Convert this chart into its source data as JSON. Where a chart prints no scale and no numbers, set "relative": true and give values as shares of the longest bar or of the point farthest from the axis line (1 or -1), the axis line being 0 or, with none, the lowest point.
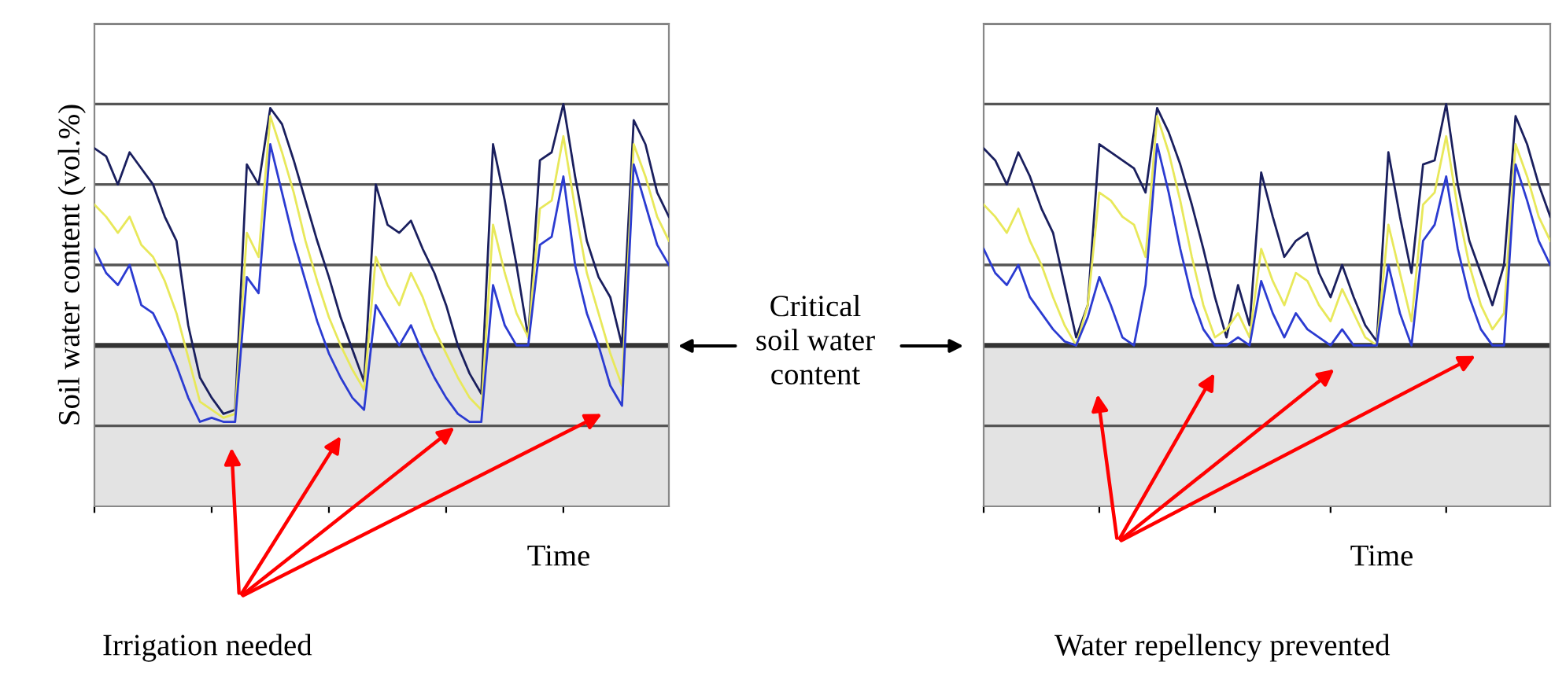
{
  "chart_data": [
    {
      "type": "line",
      "relative": true,
      "ylabel": "Soil water content (vol.%)",
      "xlabel": "Time",
      "categories": [
        null,
        null,
        null,
        null,
        null,
        null,
        null,
        null,
        null,
        null,
        null,
        null,
        null,
        null,
        null,
        null,
        null,
        null,
        null,
        null,
        null,
        null,
        null,
        null,
        null,
        null,
        null,
        null,
        null,
        null,
        null,
        null,
        null,
        null,
        null,
        null,
        null,
        null,
        null,
        null,
        null,
        null,
        null,
        null,
        null,
        null,
        null,
        null,
        null,
        null
      ],
      "series": [
        {
          "color": "#1a1f5e",
          "values": [
            0.89,
            0.87,
            0.8,
            0.88,
            0.84,
            0.8,
            0.72,
            0.66,
            0.45,
            0.32,
            0.27,
            0.23,
            0.24,
            0.85,
            0.8,
            0.99,
            0.95,
            0.86,
            0.76,
            0.66,
            0.57,
            0.47,
            0.39,
            0.31,
            0.8,
            0.7,
            0.68,
            0.71,
            0.64,
            0.58,
            0.5,
            0.4,
            0.33,
            0.28,
            0.9,
            0.76,
            0.6,
            0.42,
            0.86,
            0.88,
            1.0,
            0.82,
            0.66,
            0.57,
            0.52,
            0.4,
            0.96,
            0.9,
            0.78,
            0.72
          ]
        },
        {
          "color": "#e8e85a",
          "values": [
            0.75,
            0.72,
            0.68,
            0.72,
            0.65,
            0.62,
            0.56,
            0.48,
            0.37,
            0.26,
            0.24,
            0.22,
            0.23,
            0.68,
            0.62,
            0.97,
            0.88,
            0.78,
            0.66,
            0.56,
            0.47,
            0.4,
            0.34,
            0.29,
            0.62,
            0.55,
            0.5,
            0.58,
            0.52,
            0.44,
            0.38,
            0.32,
            0.27,
            0.24,
            0.7,
            0.58,
            0.48,
            0.42,
            0.74,
            0.76,
            0.92,
            0.74,
            0.58,
            0.48,
            0.38,
            0.3,
            0.9,
            0.82,
            0.72,
            0.66
          ]
        },
        {
          "color": "#2b3bd1",
          "values": [
            0.64,
            0.58,
            0.55,
            0.6,
            0.5,
            0.48,
            0.42,
            0.35,
            0.27,
            0.21,
            0.22,
            0.21,
            0.21,
            0.57,
            0.53,
            0.9,
            0.78,
            0.66,
            0.56,
            0.46,
            0.38,
            0.32,
            0.27,
            0.24,
            0.5,
            0.45,
            0.4,
            0.45,
            0.38,
            0.32,
            0.27,
            0.23,
            0.21,
            0.21,
            0.55,
            0.45,
            0.4,
            0.4,
            0.65,
            0.67,
            0.82,
            0.6,
            0.48,
            0.4,
            0.3,
            0.25,
            0.85,
            0.75,
            0.65,
            0.6
          ]
        }
      ],
      "ref_lines": [
        {
          "axis": "y",
          "value": 0.4,
          "label": "Critical\nsoil water\ncontent",
          "color": "#333333"
        },
        {
          "axis": "y",
          "value": 0.2,
          "color": "#555555"
        },
        {
          "axis": "y",
          "value": 0.6,
          "color": "#555555"
        },
        {
          "axis": "y",
          "value": 0.8,
          "color": "#555555"
        },
        {
          "axis": "y",
          "value": 1.0,
          "color": "#555555"
        },
        {
          "axis": "y",
          "value": 1.2,
          "color": "#555555"
        }
      ],
      "bands": [
        {
          "axis": "y",
          "from": 0,
          "to": 0.4,
          "color": "#e3e3e3"
        }
      ],
      "annotations": [
        "Irrigation needed"
      ]
    },
    {
      "type": "line",
      "relative": true,
      "xlabel": "Time",
      "categories": [
        null,
        null,
        null,
        null,
        null,
        null,
        null,
        null,
        null,
        null,
        null,
        null,
        null,
        null,
        null,
        null,
        null,
        null,
        null,
        null,
        null,
        null,
        null,
        null,
        null,
        null,
        null,
        null,
        null,
        null,
        null,
        null,
        null,
        null,
        null,
        null,
        null,
        null,
        null,
        null,
        null,
        null,
        null,
        null,
        null,
        null,
        null,
        null,
        null,
        null
      ],
      "series": [
        {
          "color": "#1a1f5e",
          "values": [
            0.89,
            0.86,
            0.8,
            0.88,
            0.82,
            0.74,
            0.68,
            0.55,
            0.42,
            0.5,
            0.9,
            0.88,
            0.86,
            0.84,
            0.78,
            0.99,
            0.93,
            0.85,
            0.75,
            0.64,
            0.52,
            0.42,
            0.55,
            0.45,
            0.83,
            0.72,
            0.62,
            0.66,
            0.68,
            0.58,
            0.52,
            0.6,
            0.52,
            0.45,
            0.41,
            0.88,
            0.72,
            0.58,
            0.85,
            0.86,
            1.0,
            0.8,
            0.66,
            0.58,
            0.5,
            0.6,
            0.97,
            0.9,
            0.8,
            0.72
          ]
        },
        {
          "color": "#e8e85a",
          "values": [
            0.75,
            0.72,
            0.68,
            0.74,
            0.66,
            0.6,
            0.52,
            0.45,
            0.4,
            0.5,
            0.78,
            0.76,
            0.72,
            0.7,
            0.62,
            0.97,
            0.88,
            0.76,
            0.62,
            0.5,
            0.42,
            0.44,
            0.48,
            0.42,
            0.64,
            0.56,
            0.5,
            0.58,
            0.56,
            0.5,
            0.46,
            0.54,
            0.48,
            0.42,
            0.4,
            0.7,
            0.58,
            0.46,
            0.75,
            0.78,
            0.92,
            0.74,
            0.6,
            0.5,
            0.44,
            0.48,
            0.9,
            0.82,
            0.72,
            0.66
          ]
        },
        {
          "color": "#2b3bd1",
          "values": [
            0.64,
            0.58,
            0.55,
            0.6,
            0.52,
            0.48,
            0.44,
            0.41,
            0.4,
            0.47,
            0.57,
            0.5,
            0.42,
            0.4,
            0.55,
            0.9,
            0.78,
            0.64,
            0.52,
            0.44,
            0.4,
            0.4,
            0.42,
            0.4,
            0.56,
            0.48,
            0.42,
            0.48,
            0.44,
            0.42,
            0.4,
            0.44,
            0.4,
            0.4,
            0.4,
            0.6,
            0.48,
            0.4,
            0.66,
            0.7,
            0.82,
            0.64,
            0.52,
            0.44,
            0.4,
            0.4,
            0.85,
            0.76,
            0.66,
            0.6
          ]
        }
      ],
      "ref_lines": [
        {
          "axis": "y",
          "value": 0.4,
          "color": "#333333"
        },
        {
          "axis": "y",
          "value": 0.2,
          "color": "#555555"
        },
        {
          "axis": "y",
          "value": 0.6,
          "color": "#555555"
        },
        {
          "axis": "y",
          "value": 0.8,
          "color": "#555555"
        },
        {
          "axis": "y",
          "value": 1.0,
          "color": "#555555"
        },
        {
          "axis": "y",
          "value": 1.2,
          "color": "#555555"
        }
      ],
      "bands": [
        {
          "axis": "y",
          "from": 0,
          "to": 0.4,
          "color": "#e3e3e3"
        }
      ],
      "annotations": [
        "Water repellency prevented"
      ]
    }
  ]
}
